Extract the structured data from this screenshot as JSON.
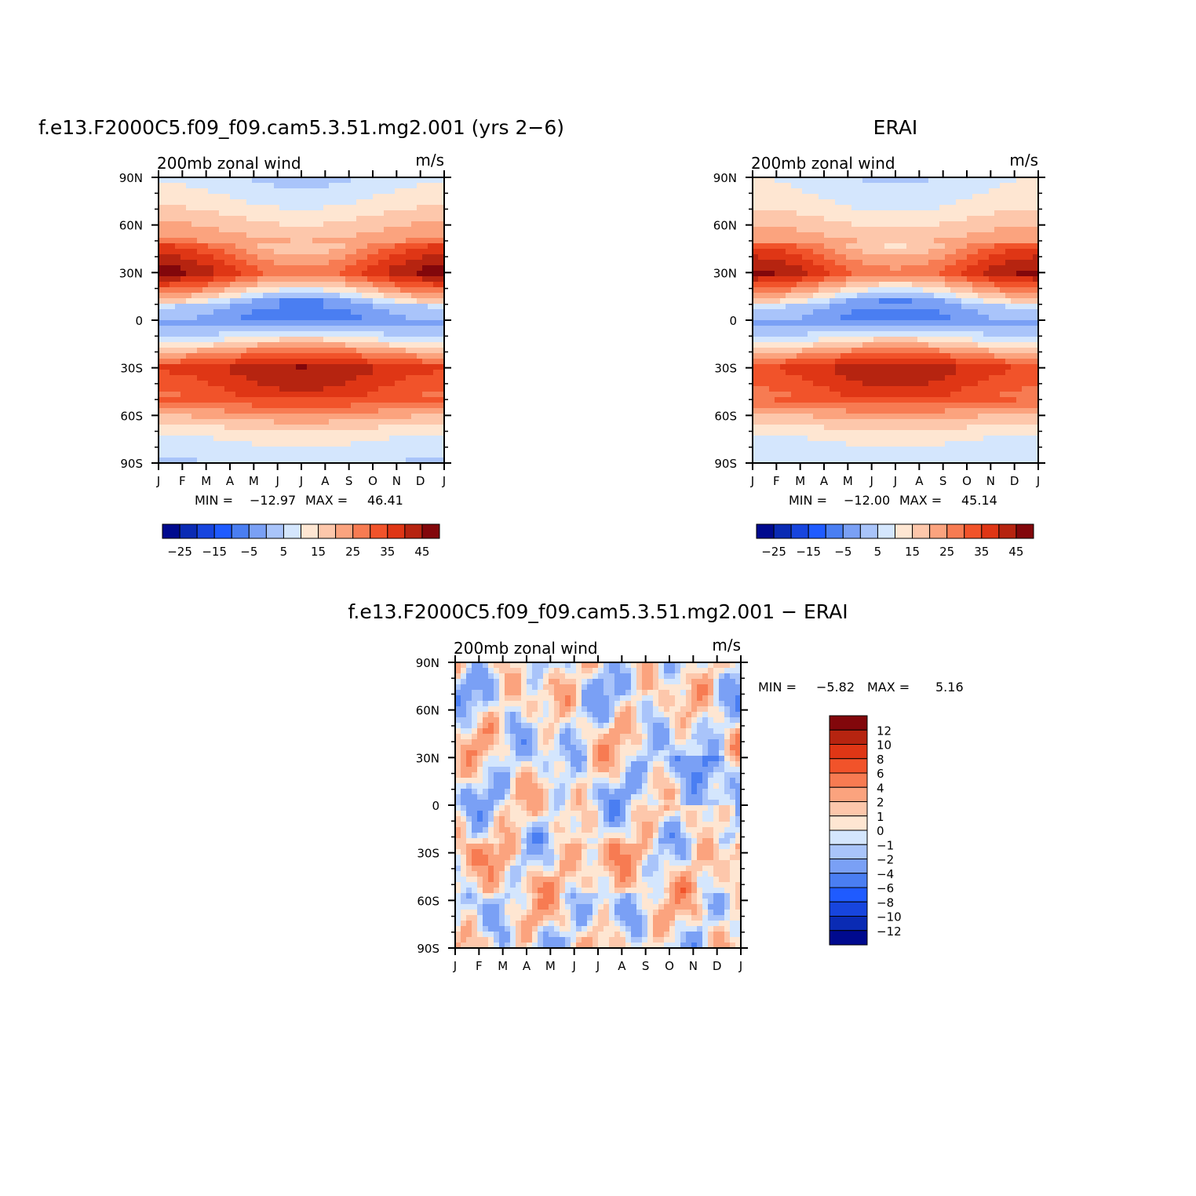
{
  "chart_data": [
    {
      "type": "heatmap",
      "title": "f.e13.F2000C5.f09_f09.cam5.3.51.mg2.001 (yrs 2−6)",
      "left_label": "200mb zonal wind",
      "right_label": "m/s",
      "x_ticks": [
        "J",
        "F",
        "M",
        "A",
        "M",
        "J",
        "J",
        "A",
        "S",
        "O",
        "N",
        "D",
        "J"
      ],
      "y_ticks": [
        "90N",
        "60N",
        "30N",
        "0",
        "30S",
        "60S",
        "90S"
      ],
      "stats": {
        "min_label": "MIN =",
        "min": "−12.97",
        "max_label": "MAX =",
        "max": "46.41"
      },
      "colorbar_labels": [
        "−25",
        "−15",
        "−5",
        "5",
        "15",
        "25",
        "35",
        "45"
      ],
      "colorbar_levels": [
        -30,
        -25,
        -20,
        -15,
        -10,
        -5,
        0,
        5,
        10,
        15,
        20,
        25,
        30,
        35,
        40,
        45
      ],
      "zonal_mean": [
        {
          "lat": 90,
          "u": 1
        },
        {
          "lat": 80,
          "u": 4
        },
        {
          "lat": 70,
          "u": 8
        },
        {
          "lat": 60,
          "u": 13
        },
        {
          "lat": 50,
          "u": 18
        },
        {
          "lat": 40,
          "u": 26
        },
        {
          "lat": 30,
          "u": 33
        },
        {
          "lat": 20,
          "u": 16
        },
        {
          "lat": 10,
          "u": -2
        },
        {
          "lat": 0,
          "u": -7
        },
        {
          "lat": -10,
          "u": 2
        },
        {
          "lat": -20,
          "u": 20
        },
        {
          "lat": -30,
          "u": 36
        },
        {
          "lat": -40,
          "u": 32
        },
        {
          "lat": -50,
          "u": 28
        },
        {
          "lat": -60,
          "u": 17
        },
        {
          "lat": -70,
          "u": 8
        },
        {
          "lat": -80,
          "u": 3
        },
        {
          "lat": -90,
          "u": 1
        }
      ]
    },
    {
      "type": "heatmap",
      "title": "ERAI",
      "left_label": "200mb zonal wind",
      "right_label": "m/s",
      "x_ticks": [
        "J",
        "F",
        "M",
        "A",
        "M",
        "J",
        "J",
        "A",
        "S",
        "O",
        "N",
        "D",
        "J"
      ],
      "y_ticks": [
        "90N",
        "60N",
        "30N",
        "0",
        "30S",
        "60S",
        "90S"
      ],
      "stats": {
        "min_label": "MIN =",
        "min": "−12.00",
        "max_label": "MAX =",
        "max": "45.14"
      },
      "colorbar_labels": [
        "−25",
        "−15",
        "−5",
        "5",
        "15",
        "25",
        "35",
        "45"
      ],
      "colorbar_levels": [
        -30,
        -25,
        -20,
        -15,
        -10,
        -5,
        0,
        5,
        10,
        15,
        20,
        25,
        30,
        35,
        40,
        45
      ],
      "zonal_mean": [
        {
          "lat": 90,
          "u": 2
        },
        {
          "lat": 80,
          "u": 4
        },
        {
          "lat": 70,
          "u": 7
        },
        {
          "lat": 60,
          "u": 12
        },
        {
          "lat": 50,
          "u": 17
        },
        {
          "lat": 40,
          "u": 25
        },
        {
          "lat": 30,
          "u": 32
        },
        {
          "lat": 20,
          "u": 15
        },
        {
          "lat": 10,
          "u": -1
        },
        {
          "lat": 0,
          "u": -6
        },
        {
          "lat": -10,
          "u": 2
        },
        {
          "lat": -20,
          "u": 19
        },
        {
          "lat": -30,
          "u": 35
        },
        {
          "lat": -40,
          "u": 31
        },
        {
          "lat": -50,
          "u": 27
        },
        {
          "lat": -60,
          "u": 16
        },
        {
          "lat": -70,
          "u": 8
        },
        {
          "lat": -80,
          "u": 3
        },
        {
          "lat": -90,
          "u": 2
        }
      ]
    },
    {
      "type": "heatmap",
      "title": "f.e13.F2000C5.f09_f09.cam5.3.51.mg2.001  −  ERAI",
      "left_label": "200mb zonal wind",
      "right_label": "m/s",
      "x_ticks": [
        "J",
        "F",
        "M",
        "A",
        "M",
        "J",
        "J",
        "A",
        "S",
        "O",
        "N",
        "D",
        "J"
      ],
      "y_ticks": [
        "90N",
        "60N",
        "30N",
        "0",
        "30S",
        "60S",
        "90S"
      ],
      "stats": {
        "min_label": "MIN =",
        "min": "−5.82",
        "max_label": "MAX =",
        "max": "5.16"
      },
      "colorbar_labels": [
        "12",
        "10",
        "8",
        "6",
        "4",
        "2",
        "1",
        "0",
        "−1",
        "−2",
        "−4",
        "−6",
        "−8",
        "−10",
        "−12"
      ],
      "colorbar_levels": [
        -12,
        -10,
        -8,
        -6,
        -4,
        -2,
        -1,
        0,
        1,
        2,
        4,
        6,
        8,
        10,
        12
      ]
    }
  ],
  "colors": {
    "scale16": [
      "#000a8e",
      "#0a2bb4",
      "#1745de",
      "#1f5bff",
      "#4a7ef2",
      "#7aa0f5",
      "#a9c4fa",
      "#d4e6fd",
      "#fee6d2",
      "#fdc7ab",
      "#fba37e",
      "#f77b52",
      "#f1532a",
      "#df3615",
      "#b62410",
      "#82070b"
    ],
    "diff16": [
      "#000a8e",
      "#0a2bb4",
      "#1745de",
      "#1f5bff",
      "#4a7ef2",
      "#7aa0f5",
      "#a9c4fa",
      "#d4e6fd",
      "#fee6d2",
      "#fdc7ab",
      "#fba37e",
      "#f77b52",
      "#f1532a",
      "#df3615",
      "#b62410",
      "#82070b"
    ]
  }
}
